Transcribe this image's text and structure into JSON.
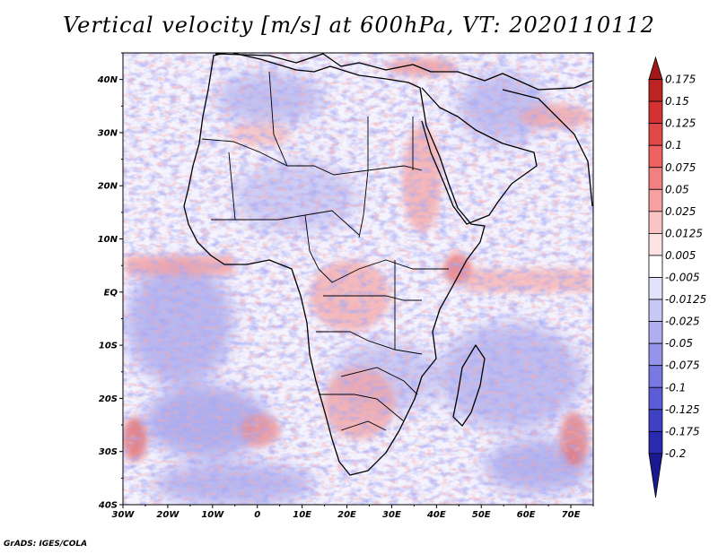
{
  "title": "Vertical velocity [m/s] at 600hPa, VT: 2020110112",
  "credit": "GrADS: IGES/COLA",
  "axes": {
    "x_ticks": [
      "30W",
      "20W",
      "10W",
      "0",
      "10E",
      "20E",
      "30E",
      "40E",
      "50E",
      "60E",
      "70E"
    ],
    "y_ticks": [
      "40N",
      "30N",
      "20N",
      "10N",
      "EQ",
      "10S",
      "20S",
      "30S",
      "40S"
    ]
  },
  "map": {
    "extent": {
      "lon": [
        -30,
        75
      ],
      "lat": [
        -40,
        45
      ]
    },
    "background_color": "#ffffff",
    "boundary_color": "#000000"
  },
  "colorbar": {
    "labels": [
      "0.175",
      "0.15",
      "0.125",
      "0.1",
      "0.075",
      "0.05",
      "0.025",
      "0.0125",
      "0.005",
      "-0.005",
      "-0.0125",
      "-0.025",
      "-0.05",
      "-0.075",
      "-0.1",
      "-0.125",
      "-0.175",
      "-0.2"
    ],
    "colors": [
      "#a01818",
      "#be2323",
      "#d43232",
      "#e24848",
      "#ee6262",
      "#f38080",
      "#f8a0a0",
      "#fbc4c4",
      "#fde2e2",
      "#ffffff",
      "#e2e2fb",
      "#c8c8f6",
      "#aeaef0",
      "#9494ea",
      "#7878e2",
      "#5c5cd6",
      "#4040c4",
      "#2a2ab0",
      "#1a1a90"
    ]
  }
}
